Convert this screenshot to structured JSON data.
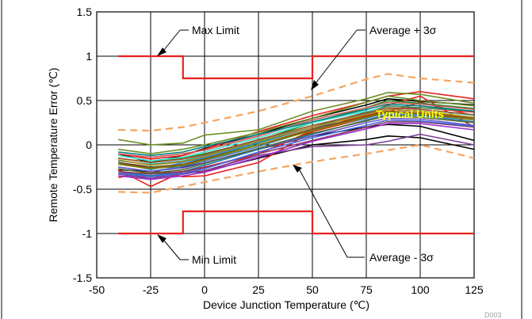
{
  "chart_data": {
    "type": "line",
    "title": "",
    "xlabel": "Device Junction Temperature (℃)",
    "ylabel": "Remote Temperature Error (℃)",
    "xlim": [
      -50,
      125
    ],
    "ylim": [
      -1.5,
      1.5
    ],
    "x_ticks": [
      -50,
      -25,
      0,
      25,
      50,
      75,
      100,
      125
    ],
    "y_ticks": [
      -1.5,
      -1,
      -0.5,
      0,
      0.5,
      1,
      1.5
    ],
    "x_tick_labels": [
      "-50",
      "-25",
      "0",
      "25",
      "50",
      "75",
      "100",
      "125"
    ],
    "y_tick_labels": [
      "-1.5",
      "-1",
      "-0.5",
      "0",
      "0.5",
      "1",
      "1.5"
    ],
    "grid": true,
    "figure_code": "D003",
    "annotations": {
      "max_limit": "Max Limit",
      "min_limit": "Min Limit",
      "avg_plus": "Average + 3σ",
      "avg_minus": "Average - 3σ",
      "typical": "Typical Units"
    },
    "colors": {
      "limit": "#e8211e",
      "sigma": "#f4a460",
      "typical_label": "#ffff00"
    },
    "limits": {
      "max": [
        [
          -40,
          1
        ],
        [
          -10,
          1
        ],
        [
          -10,
          0.75
        ],
        [
          50,
          0.75
        ],
        [
          50,
          1
        ],
        [
          125,
          1
        ]
      ],
      "min": [
        [
          -40,
          -1
        ],
        [
          -10,
          -1
        ],
        [
          -10,
          -0.75
        ],
        [
          50,
          -0.75
        ],
        [
          50,
          -1
        ],
        [
          125,
          -1
        ]
      ]
    },
    "average_plus_3sigma": {
      "x": [
        -40,
        -25,
        -10,
        0,
        25,
        50,
        75,
        85,
        100,
        125
      ],
      "y": [
        0.17,
        0.16,
        0.2,
        0.25,
        0.38,
        0.55,
        0.74,
        0.8,
        0.75,
        0.7
      ]
    },
    "average_minus_3sigma": {
      "x": [
        -40,
        -25,
        -10,
        0,
        25,
        50,
        75,
        85,
        100,
        125
      ],
      "y": [
        -0.53,
        -0.54,
        -0.47,
        -0.42,
        -0.3,
        -0.19,
        -0.1,
        -0.06,
        0.0,
        -0.15
      ]
    },
    "unit_x": [
      -40,
      -25,
      -10,
      0,
      25,
      50,
      75,
      85,
      100,
      125
    ],
    "units": [
      {
        "color": "#000000",
        "y": [
          -0.1,
          -0.2,
          -0.12,
          -0.04,
          0.12,
          0.3,
          0.45,
          0.52,
          0.49,
          0.45
        ]
      },
      {
        "color": "#000000",
        "y": [
          -0.2,
          -0.25,
          -0.25,
          -0.2,
          -0.05,
          0.1,
          0.2,
          0.23,
          0.21,
          0.05
        ]
      },
      {
        "color": "#000000",
        "y": [
          -0.28,
          -0.3,
          -0.32,
          -0.3,
          -0.15,
          0.0,
          0.06,
          0.1,
          0.08,
          -0.05
        ]
      },
      {
        "color": "#e8211e",
        "y": [
          -0.1,
          -0.16,
          -0.12,
          -0.05,
          0.15,
          0.33,
          0.48,
          0.55,
          0.6,
          0.52
        ]
      },
      {
        "color": "#e8211e",
        "y": [
          -0.3,
          -0.38,
          -0.3,
          -0.3,
          -0.1,
          0.15,
          0.3,
          0.37,
          0.48,
          0.33
        ]
      },
      {
        "color": "#e8211e",
        "y": [
          -0.37,
          -0.3,
          -0.36,
          -0.35,
          -0.2,
          0.15,
          0.35,
          0.45,
          0.55,
          0.2
        ]
      },
      {
        "color": "#e8211e",
        "y": [
          -0.28,
          -0.47,
          -0.3,
          -0.25,
          -0.1,
          0.16,
          0.33,
          0.4,
          0.42,
          0.37
        ]
      },
      {
        "color": "#6b8e23",
        "y": [
          0.06,
          0.0,
          0.02,
          0.11,
          0.17,
          0.38,
          0.52,
          0.59,
          0.57,
          0.47
        ]
      },
      {
        "color": "#6b8e23",
        "y": [
          -0.05,
          -0.1,
          -0.05,
          0.0,
          0.14,
          0.3,
          0.48,
          0.55,
          0.5,
          0.44
        ]
      },
      {
        "color": "#228b22",
        "y": [
          -0.15,
          -0.2,
          -0.15,
          -0.1,
          0.05,
          0.25,
          0.42,
          0.5,
          0.47,
          0.41
        ]
      },
      {
        "color": "#2e8b57",
        "y": [
          -0.22,
          -0.25,
          -0.22,
          -0.15,
          0.02,
          0.2,
          0.37,
          0.44,
          0.42,
          0.38
        ]
      },
      {
        "color": "#1e90ff",
        "y": [
          -0.2,
          -0.28,
          -0.2,
          -0.14,
          0.03,
          0.2,
          0.3,
          0.36,
          0.35,
          0.3
        ]
      },
      {
        "color": "#4682b4",
        "y": [
          -0.25,
          -0.3,
          -0.24,
          -0.18,
          -0.02,
          0.17,
          0.3,
          0.36,
          0.34,
          0.28
        ]
      },
      {
        "color": "#1f77b4",
        "y": [
          -0.3,
          -0.35,
          -0.3,
          -0.23,
          -0.05,
          0.12,
          0.28,
          0.34,
          0.33,
          0.26
        ]
      },
      {
        "color": "#20b2aa",
        "y": [
          -0.18,
          -0.22,
          -0.18,
          -0.12,
          0.05,
          0.22,
          0.35,
          0.4,
          0.38,
          0.3
        ]
      },
      {
        "color": "#40e0d0",
        "y": [
          -0.12,
          -0.18,
          -0.14,
          -0.08,
          0.08,
          0.25,
          0.38,
          0.42,
          0.4,
          0.33
        ]
      },
      {
        "color": "#6a5acd",
        "y": [
          -0.25,
          -0.3,
          -0.26,
          -0.2,
          -0.04,
          0.1,
          0.25,
          0.3,
          0.29,
          0.22
        ]
      },
      {
        "color": "#7b3f99",
        "y": [
          -0.33,
          -0.38,
          -0.33,
          -0.29,
          -0.12,
          -0.02,
          0.0,
          0.04,
          0.12,
          0.0
        ]
      },
      {
        "color": "#8b3a62",
        "y": [
          -0.3,
          -0.33,
          -0.3,
          -0.26,
          -0.1,
          0.05,
          0.2,
          0.26,
          0.26,
          0.2
        ]
      },
      {
        "color": "#a0522d",
        "y": [
          -0.15,
          -0.2,
          -0.16,
          -0.11,
          0.06,
          0.22,
          0.36,
          0.42,
          0.4,
          0.34
        ]
      },
      {
        "color": "#8b4513",
        "y": [
          -0.2,
          -0.26,
          -0.22,
          -0.16,
          0.0,
          0.18,
          0.32,
          0.38,
          0.36,
          0.3
        ]
      },
      {
        "color": "#b8860b",
        "y": [
          -0.17,
          -0.23,
          -0.19,
          -0.13,
          0.04,
          0.2,
          0.34,
          0.4,
          0.38,
          0.31
        ]
      },
      {
        "color": "#808000",
        "y": [
          -0.22,
          -0.27,
          -0.23,
          -0.17,
          0.0,
          0.16,
          0.31,
          0.37,
          0.35,
          0.28
        ]
      },
      {
        "color": "#556b2f",
        "y": [
          -0.27,
          -0.32,
          -0.28,
          -0.21,
          -0.04,
          0.13,
          0.27,
          0.33,
          0.31,
          0.25
        ]
      },
      {
        "color": "#cd5c5c",
        "y": [
          -0.1,
          -0.14,
          -0.1,
          -0.06,
          0.1,
          0.28,
          0.42,
          0.48,
          0.46,
          0.4
        ]
      },
      {
        "color": "#4169e1",
        "y": [
          -0.32,
          -0.36,
          -0.32,
          -0.27,
          -0.08,
          0.08,
          0.22,
          0.28,
          0.27,
          0.21
        ]
      },
      {
        "color": "#008080",
        "y": [
          -0.08,
          -0.12,
          -0.08,
          -0.02,
          0.12,
          0.26,
          0.4,
          0.46,
          0.44,
          0.38
        ]
      },
      {
        "color": "#9932cc",
        "y": [
          -0.35,
          -0.39,
          -0.35,
          -0.31,
          -0.14,
          0.04,
          0.18,
          0.24,
          0.24,
          0.17
        ]
      }
    ]
  }
}
